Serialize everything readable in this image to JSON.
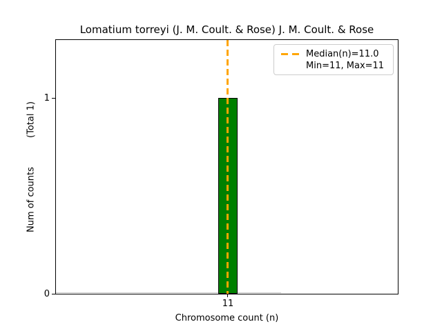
{
  "title": "Lomatium torreyi (J. M. Coult. & Rose) J. M. Coult. & Rose",
  "axes": {
    "xlabel": "Chromosome count (n)",
    "ylabel_main": "Num of counts",
    "ylabel_total": "(Total 1)",
    "xticks": [
      "11"
    ],
    "yticks": [
      "0",
      "1"
    ]
  },
  "legend": {
    "median_label": "Median(n)=11.0",
    "minmax_label": "Min=11, Max=11"
  },
  "colors": {
    "bar_fill": "#008000",
    "bar_edge": "#000000",
    "median_line": "#FFA500",
    "zero_bin_edge": "#c8c8c8",
    "legend_border": "#cccccc",
    "spine": "#000000",
    "background": "#ffffff"
  },
  "chart_data": {
    "type": "bar",
    "title": "Lomatium torreyi (J. M. Coult. & Rose) J. M. Coult. & Rose",
    "xlabel": "Chromosome count (n)",
    "ylabel": "Num of counts (Total 1)",
    "categories": [
      11
    ],
    "values": [
      1
    ],
    "bin_width": 1,
    "median_n": 11.0,
    "min_n": 11,
    "max_n": 11,
    "total_counts": 1,
    "ylim": [
      0,
      1.3
    ],
    "yticks": [
      0,
      1
    ],
    "xticks": [
      11
    ],
    "grid": false,
    "legend_position": "upper right",
    "legend_entries": [
      "Median(n)=11.0",
      "Min=11, Max=11"
    ]
  }
}
